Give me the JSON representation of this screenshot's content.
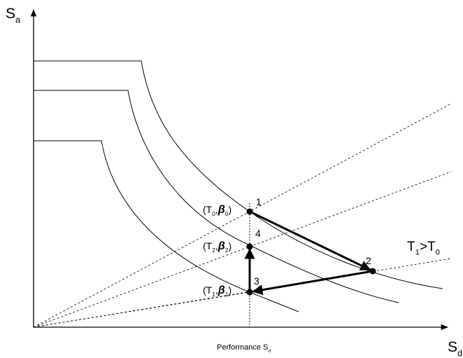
{
  "axes": {
    "y_label": [
      {
        "text": "S"
      },
      {
        "text": "a",
        "sub": true
      }
    ],
    "x_label": [
      {
        "text": "S"
      },
      {
        "text": "d",
        "sub": true
      }
    ],
    "performance_label": [
      {
        "text": "Performance S"
      },
      {
        "text": "d",
        "sub": true
      }
    ]
  },
  "points": [
    {
      "number": "1",
      "label": [
        {
          "text": "(T"
        },
        {
          "text": "0",
          "sub": true
        },
        {
          "text": ","
        },
        {
          "text": "β",
          "italic": true
        },
        {
          "text": "0",
          "sub": true
        },
        {
          "text": ")"
        }
      ]
    },
    {
      "number": "2"
    },
    {
      "number": "3",
      "label": [
        {
          "text": "(T"
        },
        {
          "text": "1",
          "sub": true
        },
        {
          "text": ","
        },
        {
          "text": "β",
          "italic": true
        },
        {
          "text": "1",
          "sub": true
        },
        {
          "text": ")"
        }
      ]
    },
    {
      "number": "4",
      "label": [
        {
          "text": "(T"
        },
        {
          "text": "2",
          "sub": true
        },
        {
          "text": ","
        },
        {
          "text": "β",
          "italic": true
        },
        {
          "text": "2",
          "sub": true
        },
        {
          "text": ")"
        }
      ]
    }
  ],
  "annotation": [
    {
      "text": "T"
    },
    {
      "text": "1",
      "sub": true
    },
    {
      "text": ">T"
    },
    {
      "text": "0",
      "sub": true
    }
  ]
}
